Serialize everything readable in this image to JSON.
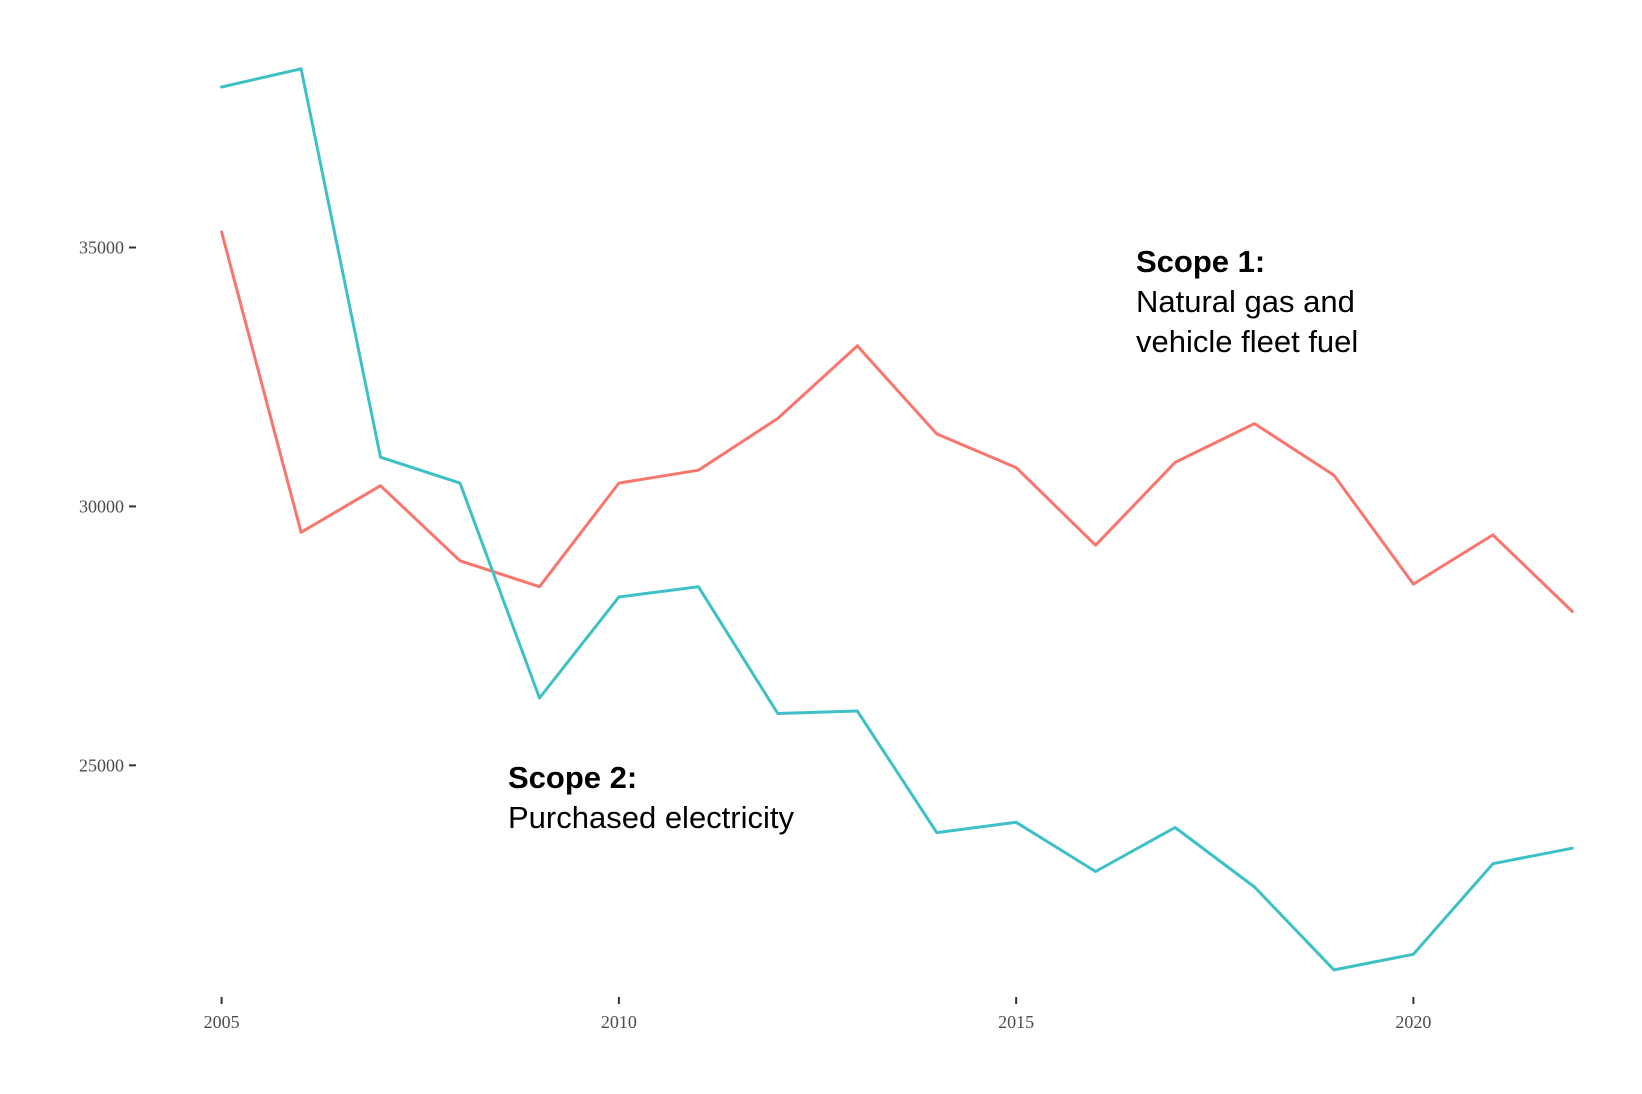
{
  "chart_data": {
    "type": "line",
    "title": "",
    "xlabel": "",
    "ylabel": "",
    "x": [
      2005,
      2006,
      2007,
      2008,
      2009,
      2010,
      2011,
      2012,
      2013,
      2014,
      2015,
      2016,
      2017,
      2018,
      2019,
      2020,
      2021,
      2022
    ],
    "xlim": [
      2004.35,
      2022.6
    ],
    "ylim": [
      20700,
      39200
    ],
    "xticks": [
      2005,
      2010,
      2015,
      2020
    ],
    "yticks": [
      25000,
      30000,
      35000
    ],
    "grid": false,
    "legend": "none",
    "series": [
      {
        "key": "scope1",
        "color": "#F8766D",
        "values": [
          35300,
          29500,
          30400,
          28950,
          28450,
          30450,
          30700,
          31700,
          33100,
          31400,
          30750,
          29250,
          30850,
          31600,
          30600,
          28500,
          29450,
          27970
        ]
      },
      {
        "key": "scope2",
        "color": "#3EC1C6",
        "values": [
          38100,
          38450,
          30950,
          30450,
          26300,
          28250,
          28450,
          26000,
          26050,
          23700,
          23900,
          22950,
          23800,
          22650,
          21050,
          21350,
          23100,
          23400
        ]
      }
    ]
  },
  "annotations": {
    "scope1": {
      "title": "Scope 1:",
      "line1": "Natural gas and",
      "line2": "vehicle fleet fuel"
    },
    "scope2": {
      "title": "Scope 2:",
      "line1": "Purchased electricity"
    }
  }
}
